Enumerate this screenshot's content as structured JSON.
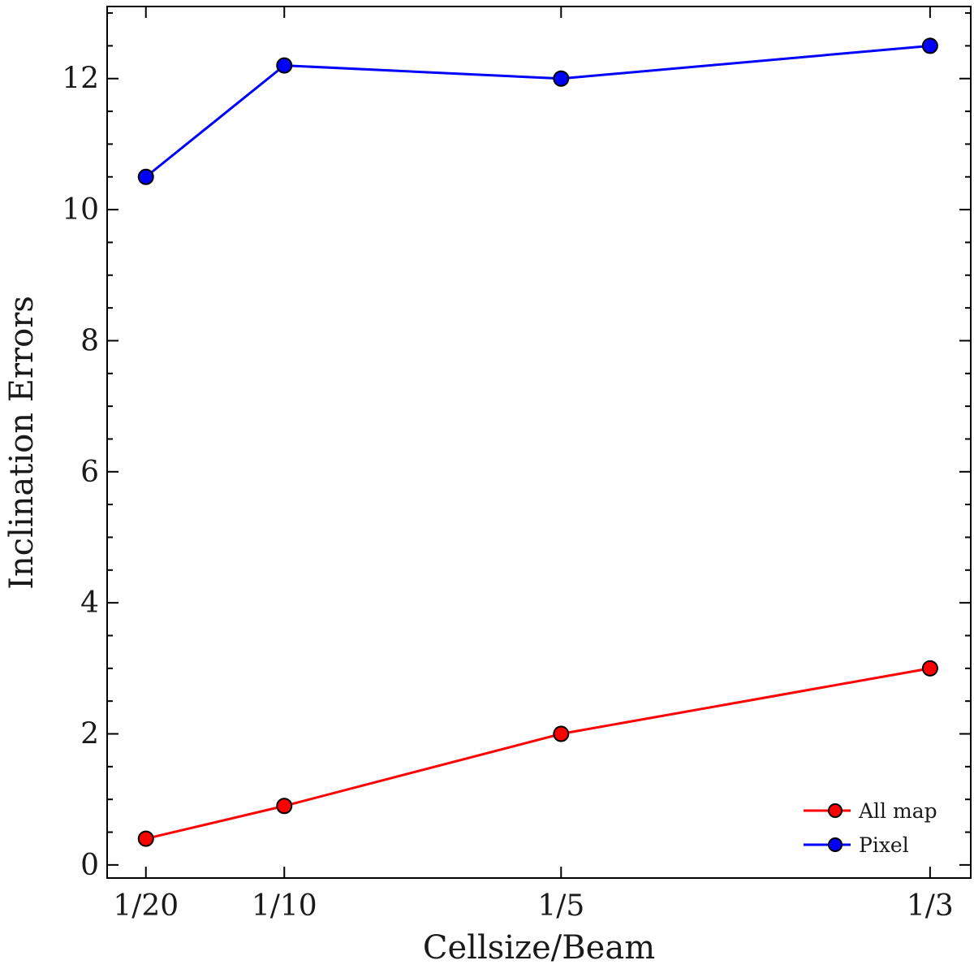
{
  "chart_data": {
    "type": "line",
    "title": "",
    "xlabel": "Cellsize/Beam",
    "ylabel": "Inclination Errors",
    "x": [
      0.05,
      0.1,
      0.2,
      0.3333
    ],
    "x_tick_labels": [
      "1/20",
      "1/10",
      "1/5",
      "1/3"
    ],
    "xlim": [
      0.036,
      0.348
    ],
    "ylim": [
      -0.2,
      13.1
    ],
    "y_ticks": [
      0,
      2,
      4,
      6,
      8,
      10,
      12
    ],
    "y_tick_labels": [
      "0",
      "2",
      "4",
      "6",
      "8",
      "10",
      "12"
    ],
    "y_minor_step": 0.5,
    "grid": false,
    "legend_position": "bottom-right",
    "series": [
      {
        "name": "All map",
        "color": "#ff0000",
        "values": [
          0.4,
          0.9,
          2.0,
          3.0
        ]
      },
      {
        "name": "Pixel",
        "color": "#0000ff",
        "values": [
          10.5,
          12.2,
          12.0,
          12.5
        ]
      }
    ]
  }
}
